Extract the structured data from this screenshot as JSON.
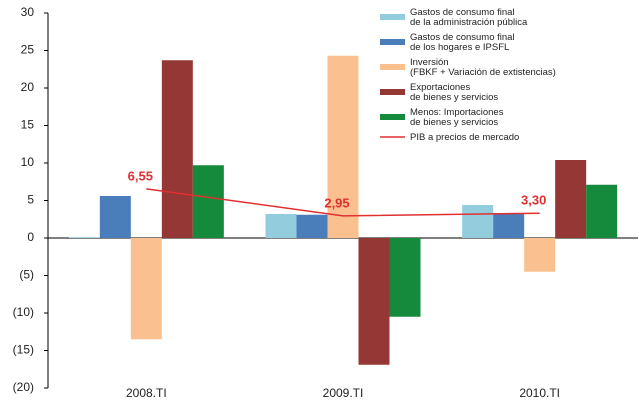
{
  "chart_data": {
    "type": "bar",
    "categories": [
      "2008.TI",
      "2009.TI",
      "2010.TI"
    ],
    "series": [
      {
        "name": "Gastos de consumo final\nde la administración pública",
        "color": "#93cddd",
        "values": [
          0.1,
          3.2,
          4.4
        ]
      },
      {
        "name": "Gastos de consumo final\nde los hogares e IPSFL",
        "color": "#4a7ebb",
        "values": [
          5.6,
          3.1,
          3.3
        ]
      },
      {
        "name": "Inversión\n(FBKF + Variación de extistencias)",
        "color": "#fac08f",
        "values": [
          -13.5,
          24.3,
          -4.5
        ]
      },
      {
        "name": "Exportaciones\nde bienes y servicios",
        "color": "#953735",
        "values": [
          23.7,
          -16.9,
          10.4
        ]
      },
      {
        "name": "Menos: Importaciones\nde bienes y servicios",
        "color": "#168a3c",
        "values": [
          9.7,
          -10.5,
          7.1
        ]
      },
      {
        "name": "PIB a precios de mercado",
        "color": "#e03030",
        "type": "line",
        "values": [
          6.55,
          2.95,
          3.3
        ],
        "value_labels": [
          "6,55",
          "2,95",
          "3,30"
        ]
      }
    ],
    "ylim": [
      -20,
      30
    ],
    "yticks": [
      {
        "value": -20,
        "label": "(20)"
      },
      {
        "value": -15,
        "label": "(15)"
      },
      {
        "value": -10,
        "label": "(10)"
      },
      {
        "value": -5,
        "label": "(5)"
      },
      0,
      5,
      10,
      15,
      20,
      25,
      30
    ],
    "grid": false
  }
}
